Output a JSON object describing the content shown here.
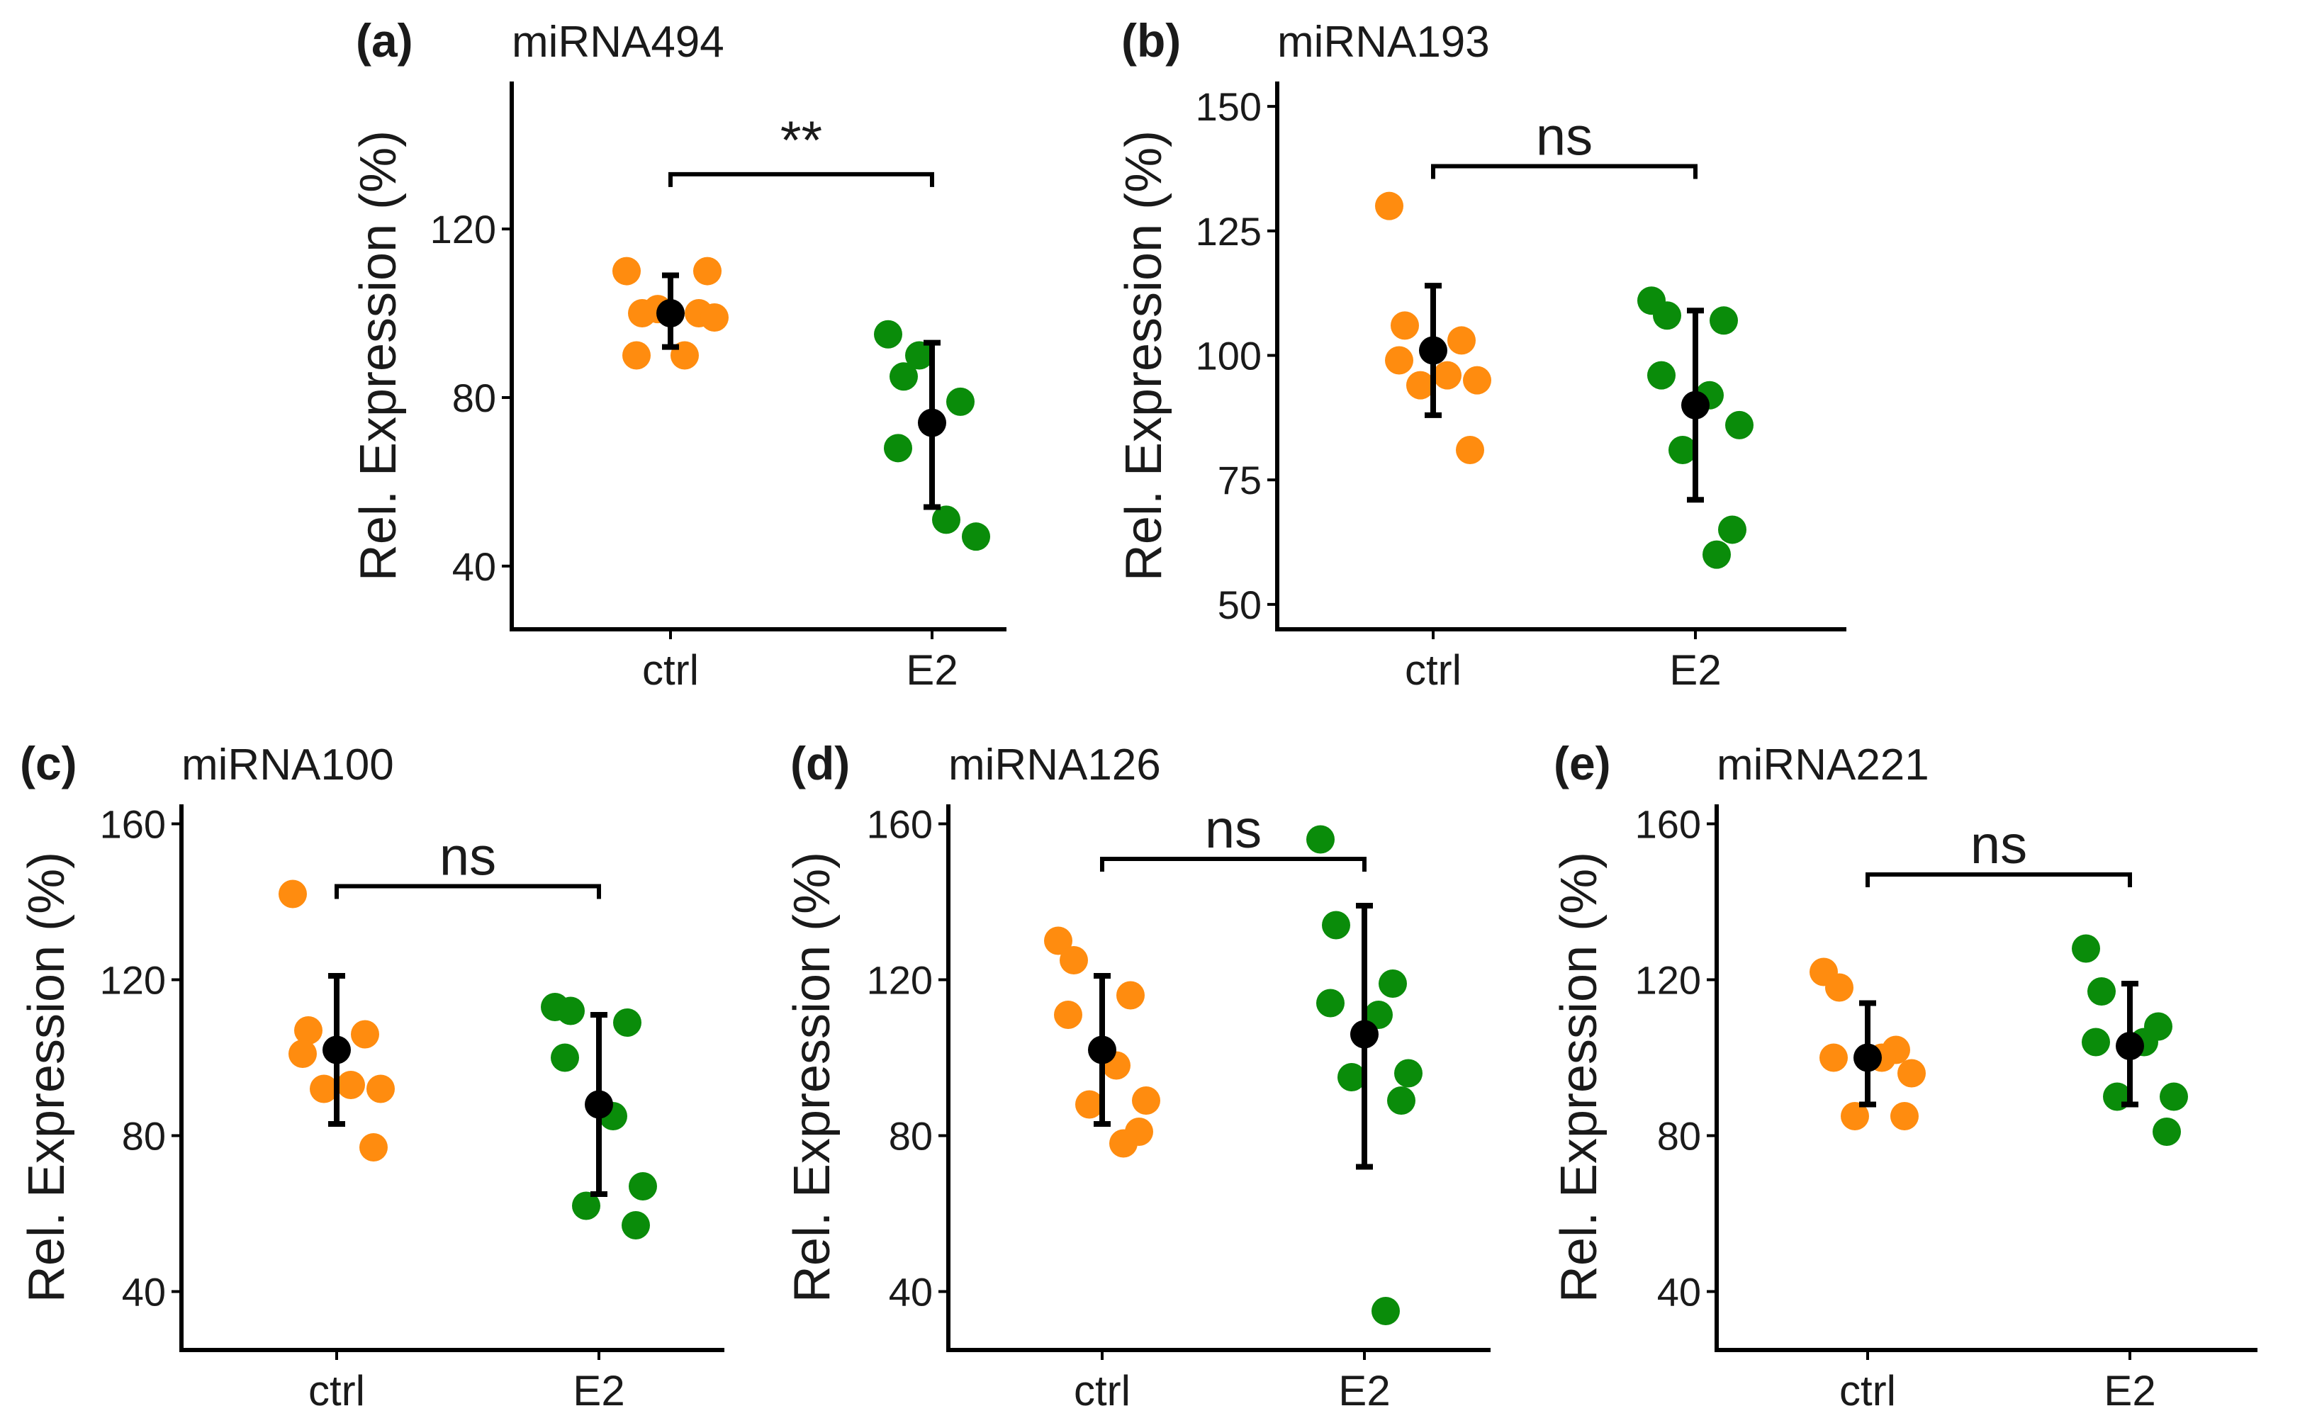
{
  "colors": {
    "ctrl": "#ff8c0f",
    "E2": "#0a8c0a",
    "mean": "#000000"
  },
  "chart_data": [
    {
      "type": "scatter",
      "panel_label": "(a)",
      "title": "miRNA494",
      "ylabel": "Rel. Expression (%)",
      "categories": [
        "ctrl",
        "E2"
      ],
      "ylim": [
        25,
        155
      ],
      "yticks": [
        40,
        80,
        120
      ],
      "significance": "**",
      "bracket_y": 133,
      "series": [
        {
          "name": "ctrl",
          "values": [
            110,
            100,
            100,
            90,
            90,
            99,
            101,
            110
          ],
          "mean": 100,
          "err": [
            92,
            109
          ]
        },
        {
          "name": "E2",
          "values": [
            95,
            85,
            79,
            68,
            51,
            47,
            90
          ],
          "mean": 74,
          "err": [
            54,
            93
          ]
        }
      ]
    },
    {
      "type": "scatter",
      "panel_label": "(b)",
      "title": "miRNA193",
      "ylabel": "Rel. Expression (%)",
      "categories": [
        "ctrl",
        "E2"
      ],
      "ylim": [
        45,
        155
      ],
      "yticks": [
        50,
        75,
        100,
        125,
        150
      ],
      "significance": "ns",
      "bracket_y": 138,
      "series": [
        {
          "name": "ctrl",
          "values": [
            130,
            106,
            103,
            99,
            96,
            95,
            94,
            81
          ],
          "mean": 101,
          "err": [
            88,
            114
          ]
        },
        {
          "name": "E2",
          "values": [
            111,
            108,
            107,
            96,
            92,
            86,
            81,
            65,
            60
          ],
          "mean": 90,
          "err": [
            71,
            109
          ]
        }
      ]
    },
    {
      "type": "scatter",
      "panel_label": "(c)",
      "title": "miRNA100",
      "ylabel": "Rel. Expression (%)",
      "categories": [
        "ctrl",
        "E2"
      ],
      "ylim": [
        25,
        165
      ],
      "yticks": [
        40,
        80,
        120,
        160
      ],
      "significance": "ns",
      "bracket_y": 144,
      "series": [
        {
          "name": "ctrl",
          "values": [
            142,
            107,
            106,
            101,
            93,
            92,
            92,
            77
          ],
          "mean": 102,
          "err": [
            83,
            121
          ]
        },
        {
          "name": "E2",
          "values": [
            113,
            112,
            109,
            100,
            85,
            67,
            62,
            57
          ],
          "mean": 88,
          "err": [
            65,
            111
          ]
        }
      ]
    },
    {
      "type": "scatter",
      "panel_label": "(d)",
      "title": "miRNA126",
      "ylabel": "Rel. Expression (%)",
      "categories": [
        "ctrl",
        "E2"
      ],
      "ylim": [
        25,
        165
      ],
      "yticks": [
        40,
        80,
        120,
        160
      ],
      "significance": "ns",
      "bracket_y": 151,
      "series": [
        {
          "name": "ctrl",
          "values": [
            130,
            125,
            116,
            111,
            98,
            89,
            88,
            81,
            78
          ],
          "mean": 102,
          "err": [
            83,
            121
          ]
        },
        {
          "name": "E2",
          "values": [
            156,
            134,
            119,
            114,
            111,
            96,
            95,
            89,
            35
          ],
          "mean": 106,
          "err": [
            72,
            139
          ]
        }
      ]
    },
    {
      "type": "scatter",
      "panel_label": "(e)",
      "title": "miRNA221",
      "ylabel": "Rel. Expression (%)",
      "categories": [
        "ctrl",
        "E2"
      ],
      "ylim": [
        25,
        165
      ],
      "yticks": [
        40,
        80,
        120,
        160
      ],
      "significance": "ns",
      "bracket_y": 147,
      "series": [
        {
          "name": "ctrl",
          "values": [
            122,
            118,
            102,
            100,
            100,
            96,
            85,
            85
          ],
          "mean": 100,
          "err": [
            88,
            114
          ]
        },
        {
          "name": "E2",
          "values": [
            128,
            117,
            108,
            104,
            104,
            90,
            90,
            81
          ],
          "mean": 103,
          "err": [
            88,
            119
          ]
        }
      ]
    }
  ]
}
